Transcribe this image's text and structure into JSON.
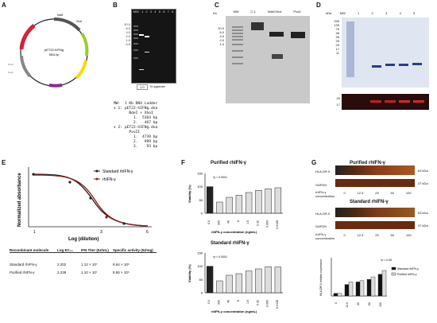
{
  "panels": {
    "A": {
      "label": "A",
      "plasmid_name": "pET22-hIFNg",
      "plasmid_size": "5831 bp",
      "features": [
        "NdeI",
        "XhoI",
        "hIFN-gamma",
        "lacI",
        "AmpR",
        "f1 ori",
        "ori",
        "T7 promoter",
        "PvuII",
        "PvuII"
      ]
    },
    "B": {
      "label": "B",
      "lanes_header": [
        "MW",
        "1",
        "2",
        "3",
        "4",
        "5",
        "6",
        "7",
        "8"
      ],
      "kb_marks": [
        "10.0",
        "8.0",
        "6.0",
        "5.0",
        "4.0",
        "3.0",
        "2.0",
        "1.5",
        "1.0",
        "0.5"
      ],
      "agarose_value": "1.0",
      "agarose_label": "% agarose",
      "legend_lines": [
        "MW:  1 Kb DNA Ladder",
        "∨ 1: pET22-hIFNg.dna",
        "       NdeI + XhoI",
        "         1.  5364 bp",
        "         2.   467 bp",
        "∨ 2: pET22-hIFNg.dna",
        "       PvuII",
        "         1.  4739 bp",
        "         2.   999 bp",
        "         3.    93 bp"
      ]
    },
    "C": {
      "label": "C",
      "kb": "Kb",
      "lanes": [
        "MW",
        "C-1",
        "NdeI/XhoI",
        "PvuII"
      ],
      "kb_marks": [
        "10.0",
        "8.0",
        "6.0",
        "5.0",
        "4.0",
        "3.0",
        "2.0",
        "1.5",
        "1.0"
      ]
    },
    "D": {
      "label": "D",
      "kda": "kDa",
      "lanes": [
        "MW",
        "1",
        "2",
        "3",
        "4",
        "5"
      ],
      "kda_marks": [
        "245",
        "180",
        "135",
        "100",
        "75",
        "63",
        "48",
        "35",
        "25",
        "20",
        "17",
        "11"
      ],
      "wb_marks": [
        "20",
        "17"
      ]
    },
    "E": {
      "label": "E",
      "ylabel": "Normalized absorbance",
      "ylabel_sub": "590nm",
      "xlabel": "Log (dilution)",
      "x_ticks": [
        "1",
        "2",
        "3",
        "4",
        "5",
        "6"
      ],
      "legend": [
        "Standard rhIFN-γ",
        "rhIFN-γ"
      ],
      "table_header": [
        "Recombinant molecule",
        "Log EC₅₀",
        "IFN Titer (IU/mL)",
        "Specific activity (IU/mg)"
      ],
      "table_rows": [
        [
          "Standard rhIFN-γ",
          "2.202",
          "1.12 × 10⁷",
          "8.64 × 10⁶"
        ],
        [
          "Purified rhIFN-γ",
          "2.239",
          "1.10 × 10⁷",
          "8.65 × 10⁶"
        ]
      ]
    },
    "F": {
      "label": "F",
      "top_title": "Purified rhIFN-γ",
      "bottom_title": "Standard rhIFN-γ",
      "ylabel": "Viability (%)",
      "xlabel": "rhIFN-γ concentration (ng/mL)",
      "pval": "*p < 0.0001",
      "categories": [
        "0.0",
        "200",
        "40",
        "8",
        "1.6",
        "0.32",
        "0.064",
        "0.0128"
      ],
      "y_ticks": [
        "0",
        "50",
        "100",
        "150"
      ]
    },
    "G": {
      "label": "G",
      "top_title": "Purified rhIFN-γ",
      "bottom_title": "Standard rhIFN-γ",
      "band1": "HLA-DR II",
      "band2": "GAPDH",
      "size1": "63 kDa",
      "size2": "37 kDa",
      "conc_label": "rhIFN-γ concentration",
      "concs": [
        "0",
        "12.5",
        "25",
        "50",
        "100"
      ],
      "chart_ylabel": "HLA-DR II relative expression",
      "pval": "*p < 0.05",
      "legend": [
        "Standard rhIFN-γ",
        "Purified rhIFN-γ"
      ]
    }
  },
  "chart_data": [
    {
      "type": "bar",
      "title": "Purified rhIFN-γ",
      "categories": [
        "0.0",
        "200",
        "40",
        "8",
        "1.6",
        "0.32",
        "0.064",
        "0.0128"
      ],
      "values": [
        100,
        42,
        60,
        68,
        78,
        86,
        92,
        96
      ],
      "ylabel": "Viability (%)",
      "xlabel": "rhIFN-γ concentration (ng/mL)",
      "ylim": [
        0,
        150
      ]
    },
    {
      "type": "bar",
      "title": "Standard rhIFN-γ",
      "categories": [
        "0.0",
        "200",
        "40",
        "8",
        "1.6",
        "0.32",
        "0.064",
        "0.0128"
      ],
      "values": [
        100,
        45,
        66,
        72,
        82,
        90,
        98,
        97
      ],
      "ylabel": "Viability (%)",
      "xlabel": "rhIFN-γ concentration (ng/mL)",
      "ylim": [
        0,
        150
      ]
    },
    {
      "type": "bar",
      "ylabel": "HLA-DR II relative expression",
      "categories": [
        "0",
        "12.5",
        "25",
        "50",
        "100"
      ],
      "series": [
        {
          "name": "Standard rhIFN-γ",
          "values": [
            0.1,
            0.45,
            0.55,
            0.65,
            0.85
          ]
        },
        {
          "name": "Purified rhIFN-γ",
          "values": [
            0.1,
            0.55,
            0.6,
            0.75,
            1.0
          ]
        }
      ],
      "ylim": [
        0,
        1.5
      ]
    },
    {
      "type": "line",
      "xlabel": "Log (dilution)",
      "ylabel": "Normalized absorbance",
      "series": [
        {
          "name": "Standard rhIFN-γ",
          "x": [
            1,
            1.5,
            2,
            2.5,
            3,
            3.5,
            4,
            5,
            6
          ],
          "y": [
            1.0,
            0.97,
            0.85,
            0.45,
            0.15,
            0.05,
            0.02,
            0.0,
            0.0
          ]
        },
        {
          "name": "rhIFN-γ",
          "x": [
            1,
            1.5,
            2,
            2.5,
            3,
            3.5,
            4,
            5,
            6
          ],
          "y": [
            1.0,
            0.98,
            0.88,
            0.5,
            0.18,
            0.06,
            0.02,
            0.0,
            0.0
          ]
        }
      ]
    }
  ]
}
